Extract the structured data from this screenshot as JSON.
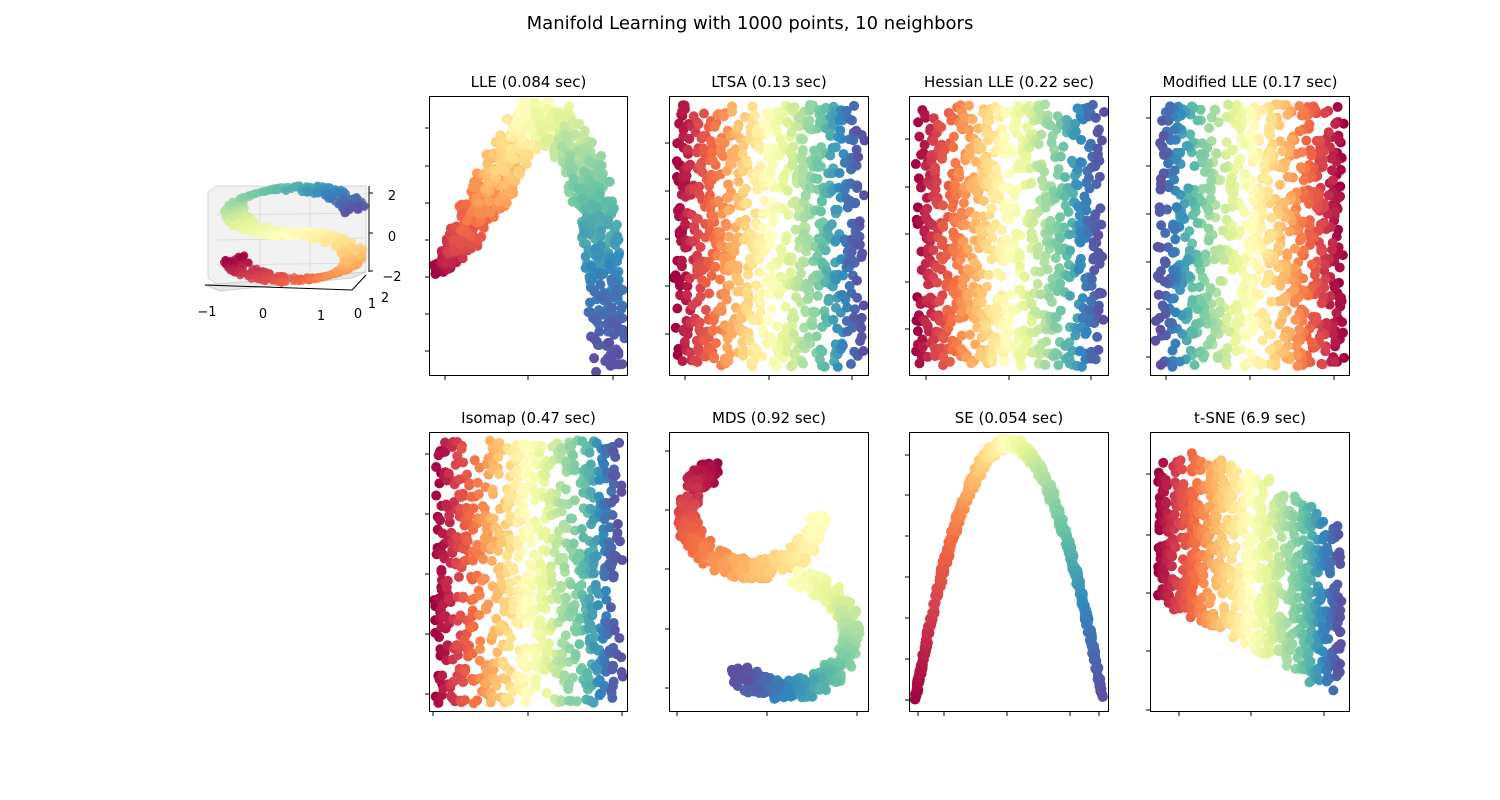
{
  "figure": {
    "title": "Manifold Learning with 1000 points, 10 neighbors"
  },
  "chart_data": [
    {
      "type": "scatter",
      "projection": "3d",
      "title": "",
      "description_series": "S-curve colored by position along curve (Spectral colormap)",
      "x_ticks": [
        "−1",
        "0",
        "1"
      ],
      "y_ticks": [
        "0",
        "1",
        "2"
      ],
      "z_ticks": [
        "−2",
        "0",
        "2"
      ],
      "xlim": [
        -1,
        1
      ],
      "ylim": [
        0,
        2
      ],
      "zlim": [
        -2,
        2
      ],
      "colormap": "Spectral",
      "points": 1000
    },
    {
      "type": "scatter",
      "title": "LLE (0.084 sec)",
      "shape": "arch",
      "colormap": "Spectral",
      "points": 1000
    },
    {
      "type": "scatter",
      "title": "LTSA (0.13 sec)",
      "shape": "rect",
      "colormap": "Spectral",
      "points": 1000
    },
    {
      "type": "scatter",
      "title": "Hessian LLE (0.22 sec)",
      "shape": "rect",
      "colormap": "Spectral",
      "points": 1000
    },
    {
      "type": "scatter",
      "title": "Modified LLE (0.17 sec)",
      "shape": "rect-reversed",
      "colormap": "Spectral",
      "points": 1000
    },
    {
      "type": "scatter",
      "title": "Isomap (0.47 sec)",
      "shape": "rect",
      "colormap": "Spectral",
      "points": 1000
    },
    {
      "type": "scatter",
      "title": "MDS (0.92 sec)",
      "shape": "s-curve",
      "colormap": "Spectral",
      "points": 1000
    },
    {
      "type": "scatter",
      "title": "SE (0.054 sec)",
      "shape": "parabola",
      "colormap": "Spectral",
      "points": 1000
    },
    {
      "type": "scatter",
      "title": "t-SNE (6.9 sec)",
      "shape": "folded-band",
      "colormap": "Spectral",
      "points": 1000
    }
  ],
  "colors": {
    "spectral": [
      "#9e0142",
      "#d53e4f",
      "#f46d43",
      "#fdae61",
      "#fee08b",
      "#ffffbf",
      "#e6f598",
      "#abdda4",
      "#66c2a5",
      "#3288bd",
      "#5e4fa2"
    ],
    "axis": "#000000",
    "pane": "#f2f2f2"
  }
}
